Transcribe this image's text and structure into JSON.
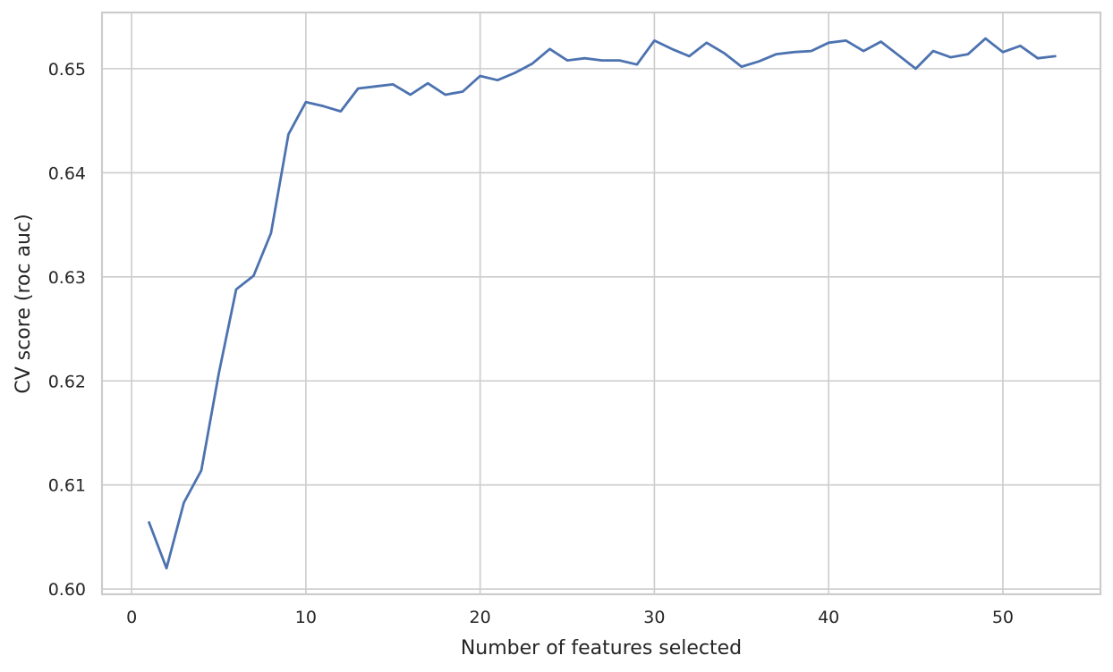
{
  "chart_data": {
    "type": "line",
    "title": "",
    "xlabel": "Number of features selected",
    "ylabel": "CV score (roc auc)",
    "xlim": [
      -1.7,
      55.6
    ],
    "ylim": [
      0.5995,
      0.6554
    ],
    "xticks": [
      0,
      10,
      20,
      30,
      40,
      50
    ],
    "xtick_labels": [
      "0",
      "10",
      "20",
      "30",
      "40",
      "50"
    ],
    "yticks": [
      0.6,
      0.61,
      0.62,
      0.63,
      0.64,
      0.65
    ],
    "ytick_labels": [
      "0.60",
      "0.61",
      "0.62",
      "0.63",
      "0.64",
      "0.65"
    ],
    "grid": true,
    "legend": "none",
    "line_color": "#4c72b0",
    "series": [
      {
        "x": [
          1,
          2,
          3,
          4,
          5,
          6,
          7,
          8,
          9,
          10,
          11,
          12,
          13,
          14,
          15,
          16,
          17,
          18,
          19,
          20,
          21,
          22,
          23,
          24,
          25,
          26,
          27,
          28,
          29,
          30,
          31,
          32,
          33,
          34,
          35,
          36,
          37,
          38,
          39,
          40,
          41,
          42,
          43,
          44,
          45,
          46,
          47,
          48,
          49,
          50,
          51,
          52,
          53
        ],
        "y": [
          0.6064,
          0.602,
          0.6083,
          0.6114,
          0.6207,
          0.6288,
          0.6301,
          0.6342,
          0.6437,
          0.6468,
          0.6464,
          0.6459,
          0.6481,
          0.6483,
          0.6485,
          0.6475,
          0.6486,
          0.6475,
          0.6478,
          0.6493,
          0.6489,
          0.6496,
          0.6505,
          0.6519,
          0.6508,
          0.651,
          0.6508,
          0.6508,
          0.6504,
          0.6527,
          0.6519,
          0.6512,
          0.6525,
          0.6515,
          0.6502,
          0.6507,
          0.6514,
          0.6516,
          0.6517,
          0.6525,
          0.6527,
          0.6517,
          0.6526,
          0.6513,
          0.65,
          0.6517,
          0.6511,
          0.6514,
          0.6529,
          0.6516,
          0.6522,
          0.651,
          0.6512
        ]
      }
    ]
  }
}
